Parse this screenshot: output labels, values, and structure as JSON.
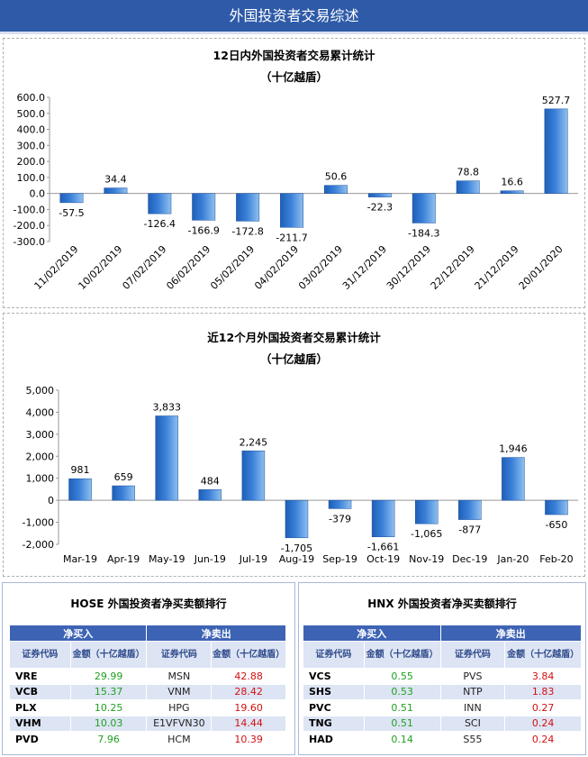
{
  "header": {
    "title": "外国投资者交易综述"
  },
  "chart_data": [
    {
      "type": "bar",
      "title": "12日内外国投资者交易累计统计",
      "subtitle": "（十亿越盾）",
      "categories": [
        "11/02/2019",
        "10/02/2019",
        "07/02/2019",
        "06/02/2019",
        "05/02/2019",
        "04/02/2019",
        "03/02/2019",
        "31/12/2019",
        "30/12/2019",
        "22/12/2019",
        "21/12/2019",
        "20/01/2020"
      ],
      "values": [
        -57.5,
        34.4,
        -126.4,
        -166.9,
        -172.8,
        -211.7,
        50.6,
        -22.3,
        -184.3,
        78.8,
        16.6,
        527.7
      ],
      "value_labels": [
        "-57.5",
        "34.4",
        "-126.4",
        "-166.9",
        "-172.8",
        "-211.7",
        "50.6",
        "-22.3",
        "-184.3",
        "78.8",
        "16.6",
        "527.7"
      ],
      "yticks": [
        "600.0",
        "500.0",
        "400.0",
        "300.0",
        "200.0",
        "100.0",
        "0.0",
        "-100.0",
        "-200.0",
        "-300.0"
      ],
      "ylim": [
        -300,
        600
      ],
      "grid": false,
      "bar_color": "#3a80d8"
    },
    {
      "type": "bar",
      "title": "近12个月外国投资者交易累计统计",
      "subtitle": "（十亿越盾）",
      "categories": [
        "Mar-19",
        "Apr-19",
        "May-19",
        "Jun-19",
        "Jul-19",
        "Aug-19",
        "Sep-19",
        "Oct-19",
        "Nov-19",
        "Dec-19",
        "Jan-20",
        "Feb-20"
      ],
      "values": [
        981,
        659,
        3833,
        484,
        2245,
        -1705,
        -379,
        -1661,
        -1065,
        -877,
        1946,
        -650
      ],
      "value_labels": [
        "981",
        "659",
        "3,833",
        "484",
        "2,245",
        "-1,705",
        "-379",
        "-1,661",
        "-1,065",
        "-877",
        "1,946",
        "-650"
      ],
      "yticks": [
        "5,000",
        "4,000",
        "3,000",
        "2,000",
        "1,000",
        "0",
        "-1,000",
        "-2,000"
      ],
      "ylim": [
        -2000,
        5000
      ],
      "grid": false,
      "bar_color": "#3a80d8"
    }
  ],
  "tables": [
    {
      "title": "HOSE 外国投资者净买卖额排行",
      "buy_header": "净买入",
      "sell_header": "净卖出",
      "col_code": "证券代码",
      "col_amount": "金额（十亿越盾）",
      "rows": [
        {
          "buy_code": "VRE",
          "buy_amt": "29.99",
          "sell_code": "MSN",
          "sell_amt": "42.88"
        },
        {
          "buy_code": "VCB",
          "buy_amt": "15.37",
          "sell_code": "VNM",
          "sell_amt": "28.42"
        },
        {
          "buy_code": "PLX",
          "buy_amt": "10.25",
          "sell_code": "HPG",
          "sell_amt": "19.60"
        },
        {
          "buy_code": "VHM",
          "buy_amt": "10.03",
          "sell_code": "E1VFVN30",
          "sell_amt": "14.44"
        },
        {
          "buy_code": "PVD",
          "buy_amt": "7.96",
          "sell_code": "HCM",
          "sell_amt": "10.39"
        }
      ]
    },
    {
      "title": "HNX 外国投资者净买卖额排行",
      "buy_header": "净买入",
      "sell_header": "净卖出",
      "col_code": "证券代码",
      "col_amount": "金额（十亿越盾）",
      "rows": [
        {
          "buy_code": "VCS",
          "buy_amt": "0.55",
          "sell_code": "PVS",
          "sell_amt": "3.84"
        },
        {
          "buy_code": "SHS",
          "buy_amt": "0.53",
          "sell_code": "NTP",
          "sell_amt": "1.83"
        },
        {
          "buy_code": "PVC",
          "buy_amt": "0.51",
          "sell_code": "INN",
          "sell_amt": "0.27"
        },
        {
          "buy_code": "TNG",
          "buy_amt": "0.51",
          "sell_code": "SCI",
          "sell_amt": "0.24"
        },
        {
          "buy_code": "HAD",
          "buy_amt": "0.14",
          "sell_code": "S55",
          "sell_amt": "0.24"
        }
      ]
    }
  ]
}
